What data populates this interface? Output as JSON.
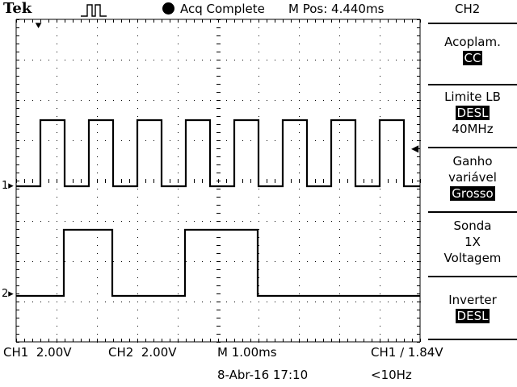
{
  "header": {
    "brand": "Tek",
    "status": "Acq Complete",
    "position": "M Pos: 4.440ms",
    "channel": "CH2"
  },
  "menu": {
    "coupling": {
      "title": "Acoplam.",
      "value": "CC"
    },
    "bw_limit": {
      "title": "Limite LB",
      "value": "DESL",
      "extra": "40MHz"
    },
    "gain": {
      "title_line1": "Ganho",
      "title_line2": "variável",
      "value": "Grosso"
    },
    "probe": {
      "title": "Sonda",
      "line2": "1X",
      "line3": "Voltagem"
    },
    "invert": {
      "title": "Inverter",
      "value": "DESL"
    }
  },
  "markers": {
    "ch1": "1",
    "ch2": "2"
  },
  "footer": {
    "ch1_scale": "CH1  2.00V",
    "ch2_scale": "CH2  2.00V",
    "timebase": "M 1.00ms",
    "trigger": "CH1 ∕ 1.84V",
    "datetime": "8-Abr-16 17:10",
    "freq": "<10Hz"
  },
  "colors": {
    "background": "#ffffff",
    "trace": "#000000"
  }
}
